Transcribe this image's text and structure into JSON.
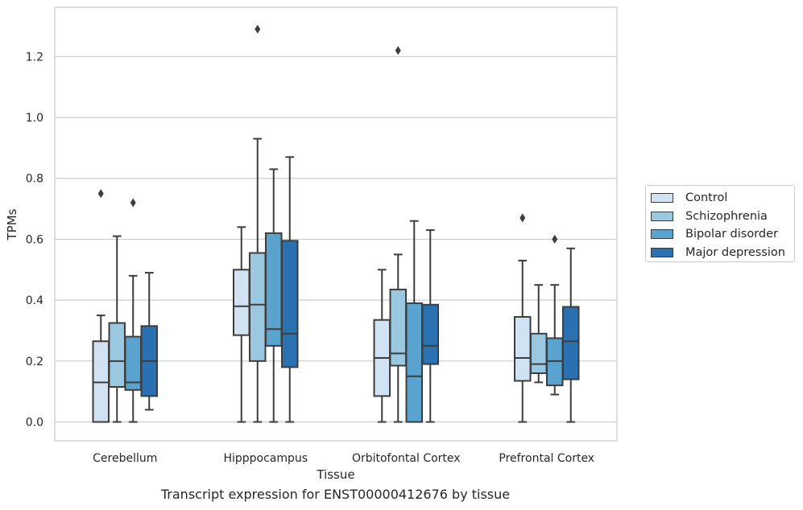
{
  "caption": "Transcript expression for ENST00000412676 by tissue",
  "chart_data": {
    "type": "box",
    "xlabel": "Tissue",
    "ylabel": "TPMs",
    "ylim": [
      -0.062,
      1.362
    ],
    "yticks": [
      "0.0",
      "0.2",
      "0.4",
      "0.6",
      "0.8",
      "1.0",
      "1.2"
    ],
    "grid": true,
    "legend_position": "right",
    "categories": [
      "Cerebellum",
      "Hipppocampus",
      "Orbitofontal Cortex",
      "Prefrontal Cortex"
    ],
    "series": [
      {
        "name": "Control",
        "color": "#d1e3f3",
        "boxes": [
          {
            "min": 0.0,
            "q1": 0.0,
            "median": 0.13,
            "q3": 0.265,
            "max": 0.35,
            "outliers": [
              0.75
            ]
          },
          {
            "min": 0.0,
            "q1": 0.285,
            "median": 0.38,
            "q3": 0.5,
            "max": 0.64,
            "outliers": []
          },
          {
            "min": 0.0,
            "q1": 0.085,
            "median": 0.21,
            "q3": 0.335,
            "max": 0.5,
            "outliers": []
          },
          {
            "min": 0.0,
            "q1": 0.135,
            "median": 0.21,
            "q3": 0.345,
            "max": 0.53,
            "outliers": [
              0.67
            ]
          }
        ]
      },
      {
        "name": "Schizophrenia",
        "color": "#9ac8e0",
        "boxes": [
          {
            "min": 0.0,
            "q1": 0.115,
            "median": 0.2,
            "q3": 0.325,
            "max": 0.61,
            "outliers": []
          },
          {
            "min": 0.0,
            "q1": 0.2,
            "median": 0.385,
            "q3": 0.555,
            "max": 0.93,
            "outliers": [
              1.29
            ]
          },
          {
            "min": 0.0,
            "q1": 0.185,
            "median": 0.225,
            "q3": 0.435,
            "max": 0.55,
            "outliers": [
              1.22
            ]
          },
          {
            "min": 0.13,
            "q1": 0.16,
            "median": 0.19,
            "q3": 0.29,
            "max": 0.45,
            "outliers": []
          }
        ]
      },
      {
        "name": "Bipolar disorder",
        "color": "#5ba3cf",
        "boxes": [
          {
            "min": 0.0,
            "q1": 0.105,
            "median": 0.13,
            "q3": 0.28,
            "max": 0.48,
            "outliers": [
              0.72
            ]
          },
          {
            "min": 0.0,
            "q1": 0.25,
            "median": 0.305,
            "q3": 0.62,
            "max": 0.83,
            "outliers": []
          },
          {
            "min": 0.0,
            "q1": 0.0,
            "median": 0.15,
            "q3": 0.39,
            "max": 0.66,
            "outliers": []
          },
          {
            "min": 0.09,
            "q1": 0.12,
            "median": 0.2,
            "q3": 0.275,
            "max": 0.45,
            "outliers": [
              0.6
            ]
          }
        ]
      },
      {
        "name": "Major depression",
        "color": "#2a71b2",
        "boxes": [
          {
            "min": 0.04,
            "q1": 0.085,
            "median": 0.2,
            "q3": 0.315,
            "max": 0.49,
            "outliers": []
          },
          {
            "min": 0.0,
            "q1": 0.18,
            "median": 0.29,
            "q3": 0.595,
            "max": 0.87,
            "outliers": []
          },
          {
            "min": 0.0,
            "q1": 0.19,
            "median": 0.25,
            "q3": 0.385,
            "max": 0.63,
            "outliers": []
          },
          {
            "min": 0.0,
            "q1": 0.14,
            "median": 0.265,
            "q3": 0.378,
            "max": 0.57,
            "outliers": []
          }
        ]
      }
    ]
  }
}
